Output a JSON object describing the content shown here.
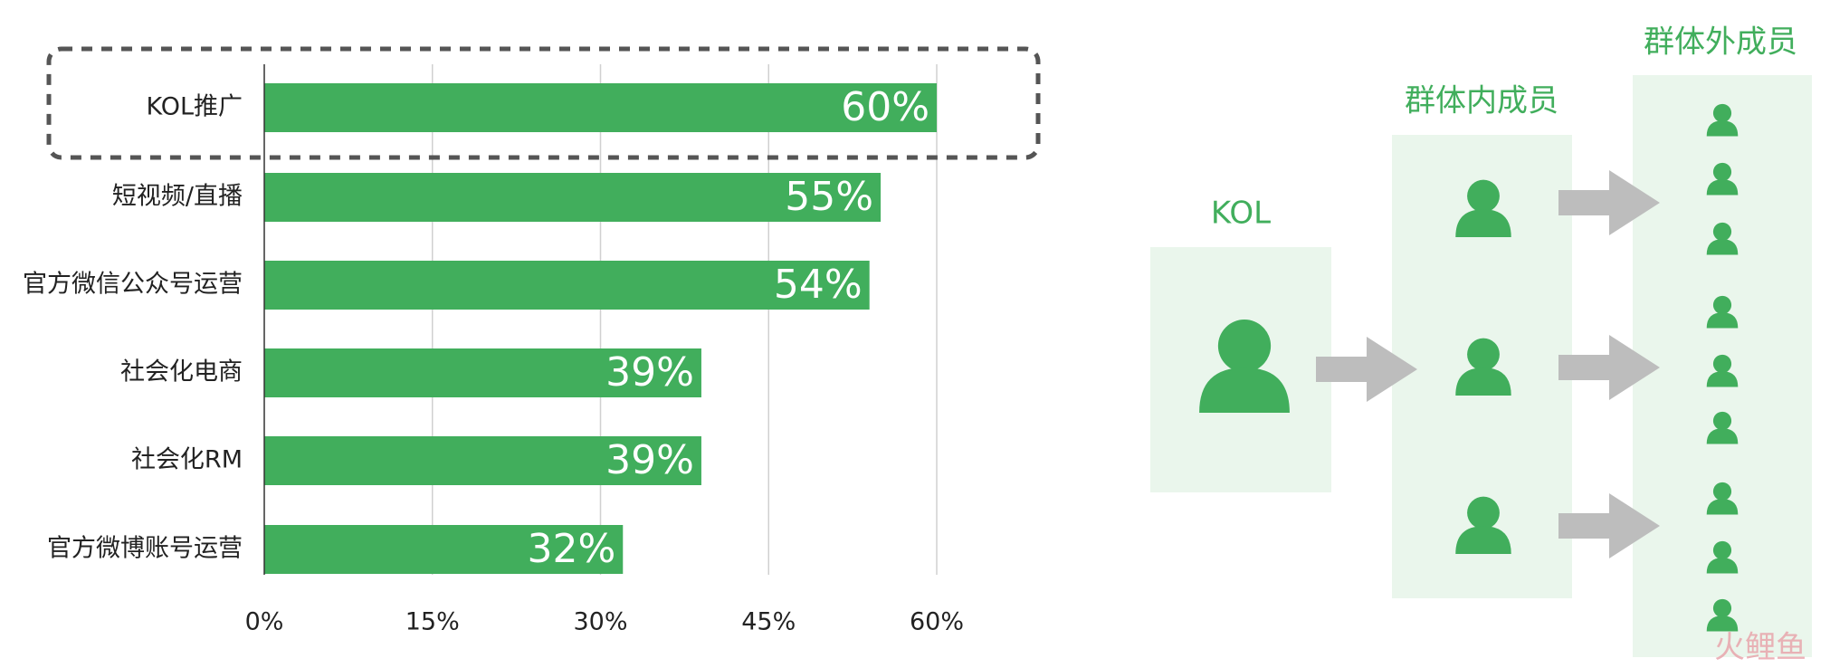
{
  "chart_data": {
    "type": "hbar",
    "categories": [
      "KOL推广",
      "短视频/直播",
      "官方微信公众号运营",
      "社会化电商",
      "社会化RM",
      "官方微博账号运营"
    ],
    "values": [
      60,
      55,
      54,
      39,
      39,
      32
    ],
    "value_labels": [
      "60%",
      "55%",
      "54%",
      "39%",
      "39%",
      "32%"
    ],
    "color": "#41ae5c",
    "xlim": [
      0,
      60
    ],
    "xticks": [
      {
        "value": 0,
        "label": "0%"
      },
      {
        "value": 15,
        "label": "15%"
      },
      {
        "value": 30,
        "label": "30%"
      },
      {
        "value": 45,
        "label": "45%"
      },
      {
        "value": 60,
        "label": "60%"
      }
    ],
    "grid": true
  },
  "diagram": {
    "kol_label": "KOL",
    "inner_label": "群体内成员",
    "outer_label": "群体外成员",
    "watermark": "火鲤鱼"
  }
}
